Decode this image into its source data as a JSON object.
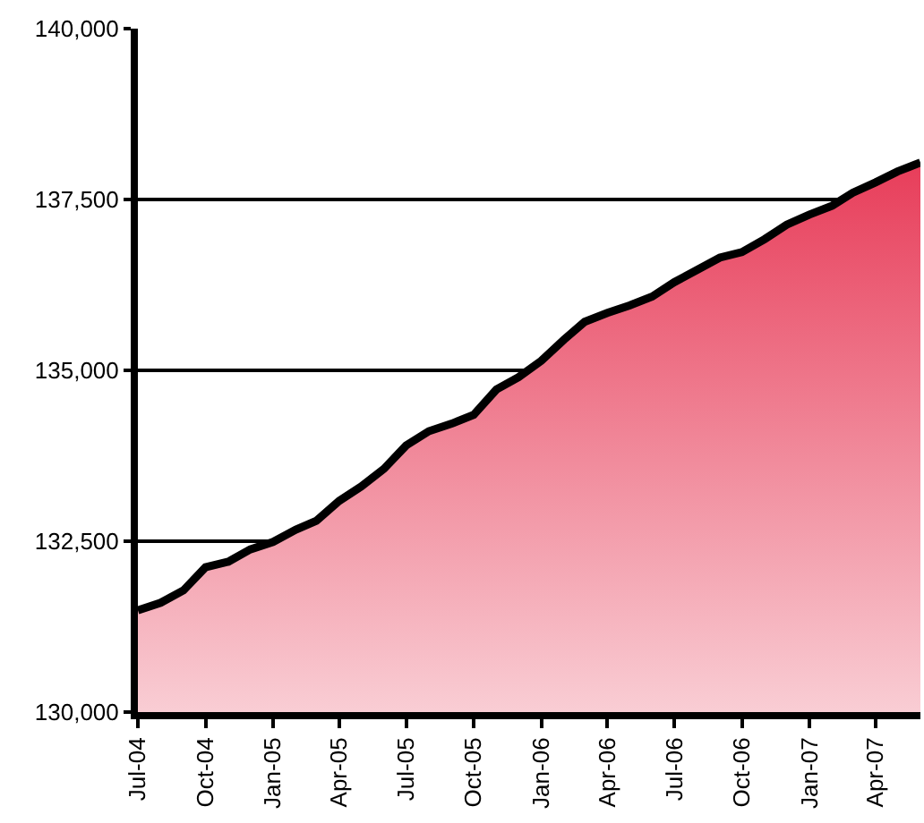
{
  "chart_data": {
    "type": "area",
    "x": [
      "2004-07",
      "2004-08",
      "2004-09",
      "2004-10",
      "2004-11",
      "2004-12",
      "2005-01",
      "2005-02",
      "2005-03",
      "2005-04",
      "2005-05",
      "2005-06",
      "2005-07",
      "2005-08",
      "2005-09",
      "2005-10",
      "2005-11",
      "2005-12",
      "2006-01",
      "2006-02",
      "2006-03",
      "2006-04",
      "2006-05",
      "2006-06",
      "2006-07",
      "2006-08",
      "2006-09",
      "2006-10",
      "2006-11",
      "2006-12",
      "2007-01",
      "2007-02",
      "2007-03",
      "2007-04",
      "2007-05",
      "2007-06"
    ],
    "series": [
      {
        "color": "#e31a3c",
        "values": [
          131490,
          131600,
          131780,
          132120,
          132200,
          132380,
          132490,
          132670,
          132800,
          133090,
          133300,
          133560,
          133900,
          134110,
          134220,
          134350,
          134720,
          134900,
          135140,
          135450,
          135710,
          135840,
          135950,
          136080,
          136290,
          136470,
          136650,
          136730,
          136920,
          137130,
          137280,
          137410,
          137600,
          137750,
          137910,
          138040
        ]
      }
    ],
    "xlim": [
      "2004-07",
      "2007-06"
    ],
    "xticks": [
      {
        "value": "2004-07",
        "label": "Jul-04"
      },
      {
        "value": "2004-10",
        "label": "Oct-04"
      },
      {
        "value": "2005-01",
        "label": "Jan-05"
      },
      {
        "value": "2005-04",
        "label": "Apr-05"
      },
      {
        "value": "2005-07",
        "label": "Jul-05"
      },
      {
        "value": "2005-10",
        "label": "Oct-05"
      },
      {
        "value": "2006-01",
        "label": "Jan-06"
      },
      {
        "value": "2006-04",
        "label": "Apr-06"
      },
      {
        "value": "2006-07",
        "label": "Jul-06"
      },
      {
        "value": "2006-10",
        "label": "Oct-06"
      },
      {
        "value": "2007-01",
        "label": "Jan-07"
      },
      {
        "value": "2007-04",
        "label": "Apr-07"
      }
    ],
    "ylim": [
      130000,
      140000
    ],
    "yticks": [
      {
        "value": 130000,
        "label": "130,000"
      },
      {
        "value": 132500,
        "label": "132,500"
      },
      {
        "value": 135000,
        "label": "135,000"
      },
      {
        "value": 137500,
        "label": "137,500"
      },
      {
        "value": 140000,
        "label": "140,000"
      }
    ],
    "grid": "y"
  }
}
